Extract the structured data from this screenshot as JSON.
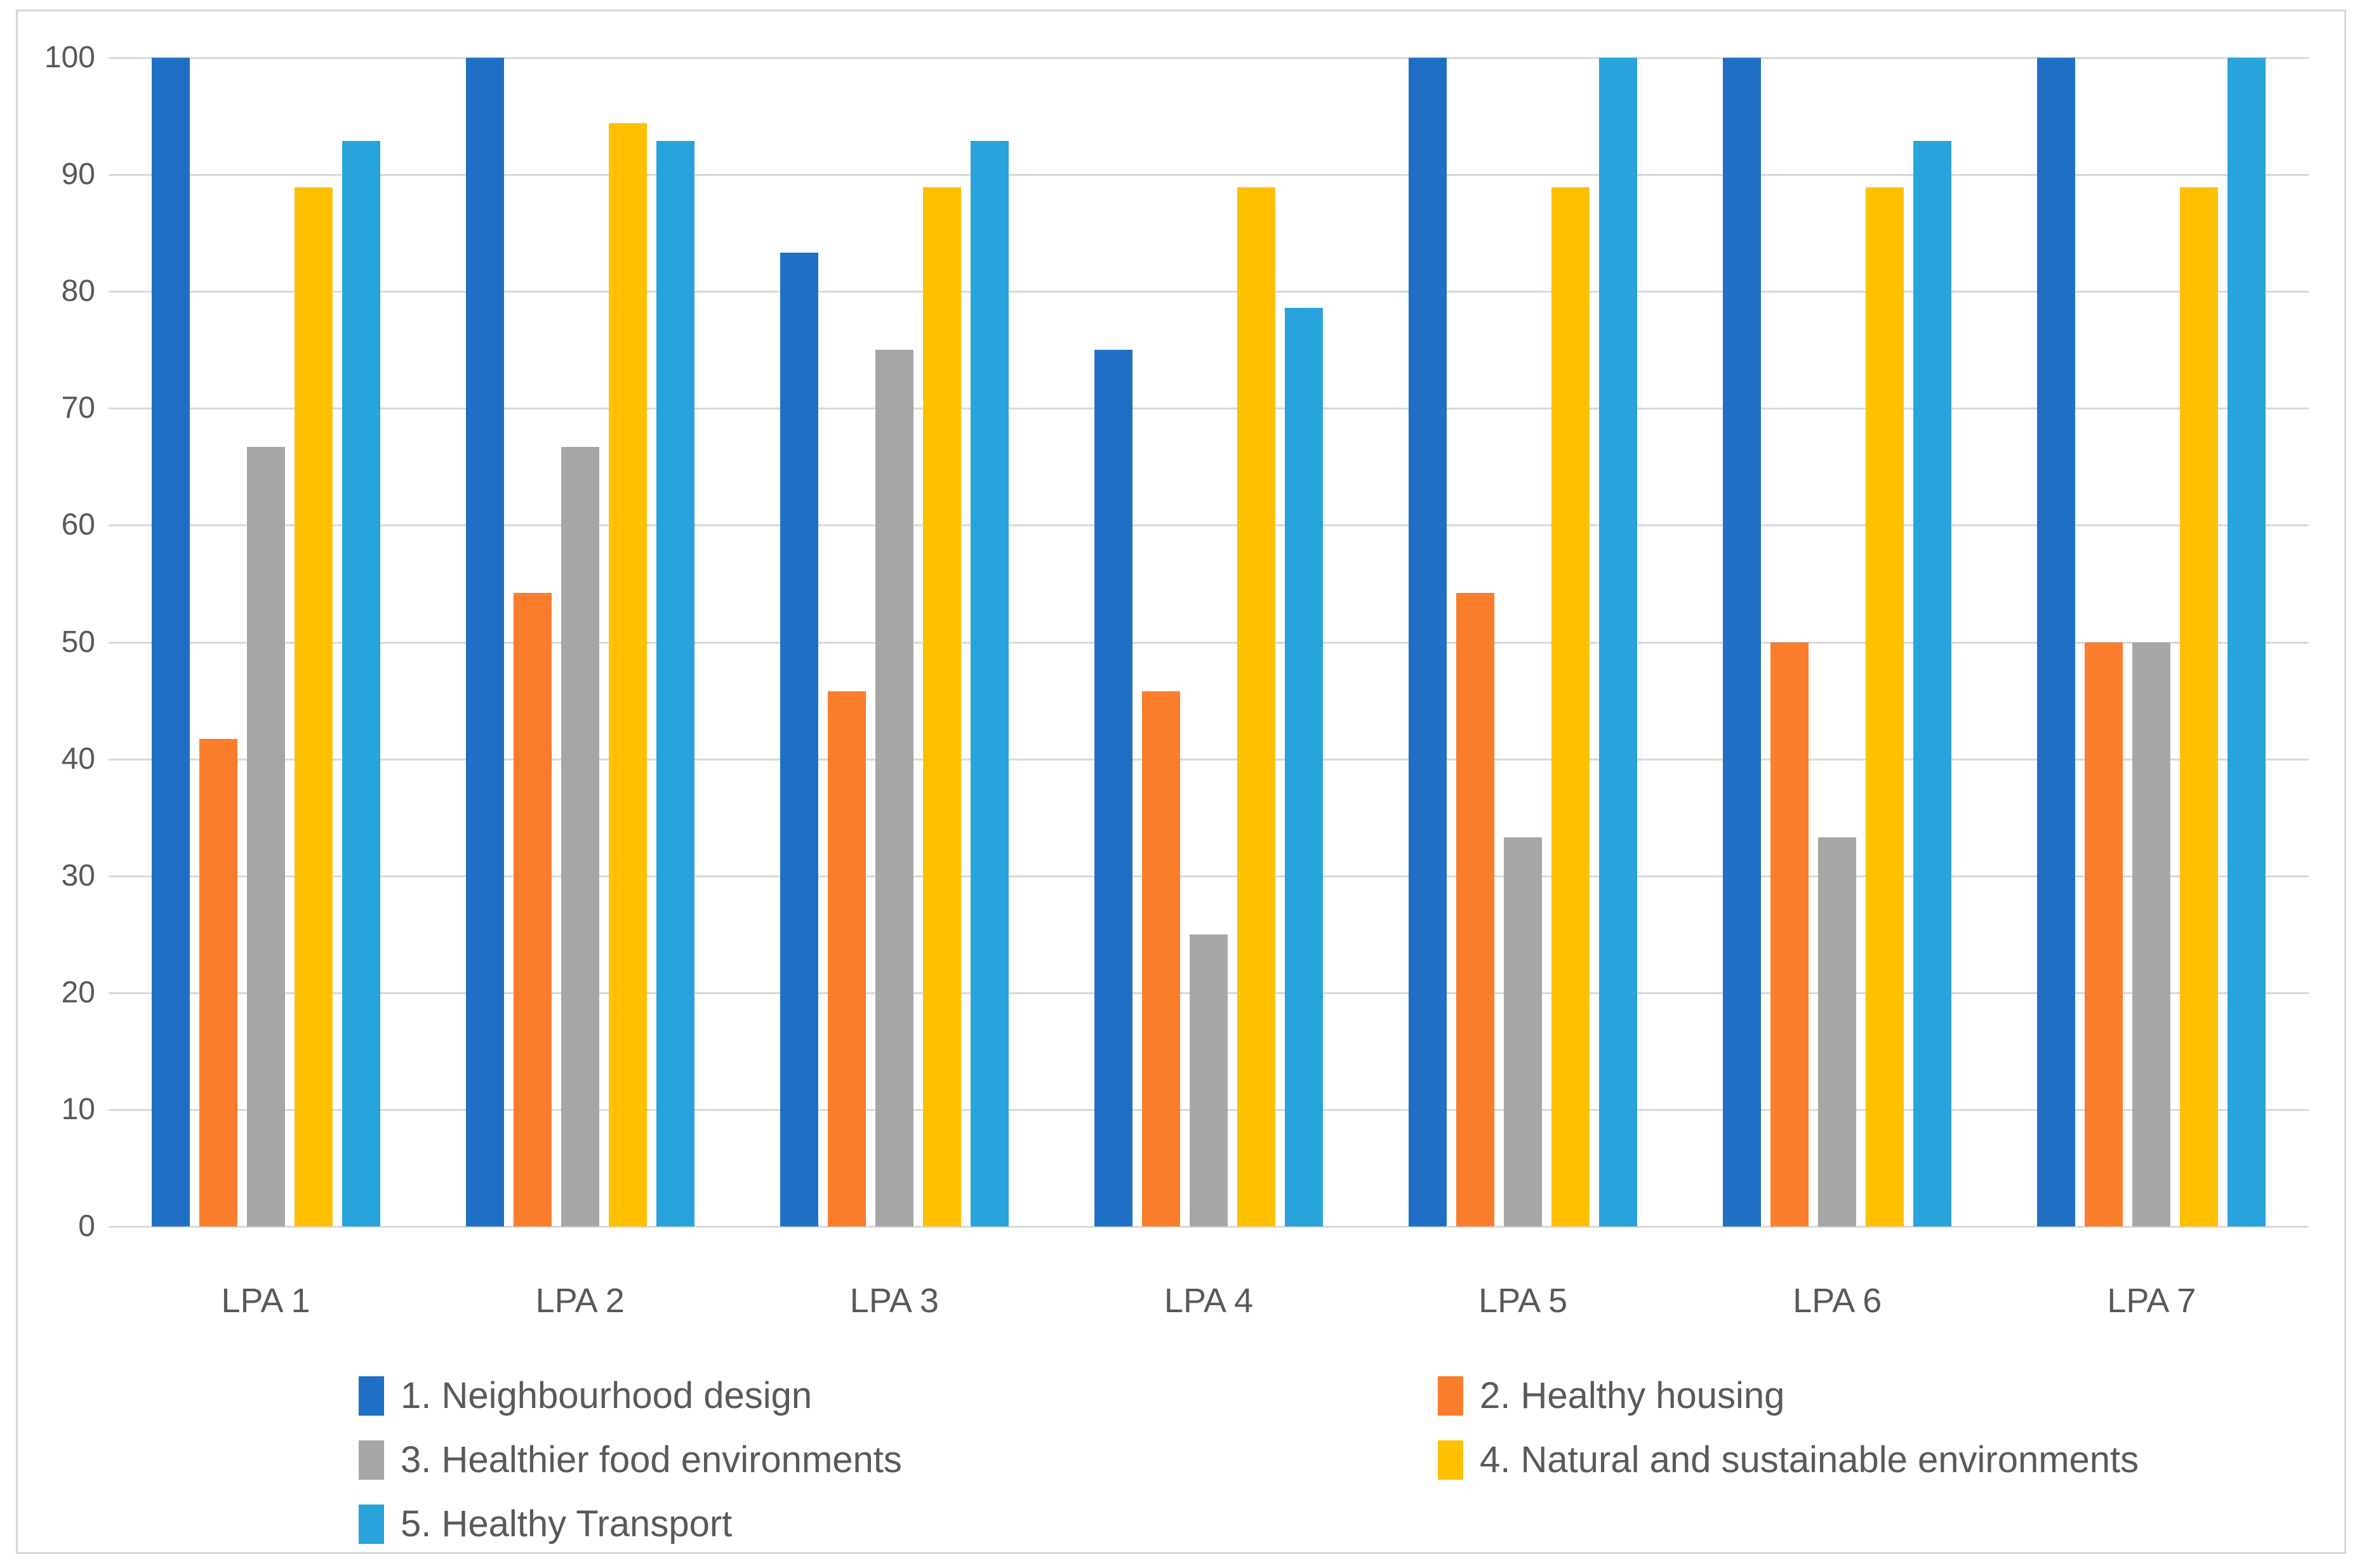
{
  "chart_data": {
    "type": "bar",
    "title": "",
    "categories": [
      "LPA 1",
      "LPA 2",
      "LPA 3",
      "LPA 4",
      "LPA 5",
      "LPA 6",
      "LPA 7"
    ],
    "series": [
      {
        "name": "1. Neighbourhood design",
        "color": "#1F70C4",
        "values": [
          100,
          100,
          83.3,
          75,
          100,
          100,
          100
        ]
      },
      {
        "name": "2. Healthy housing",
        "color": "#F97D2B",
        "values": [
          41.7,
          54.2,
          45.8,
          45.8,
          54.2,
          50,
          50
        ]
      },
      {
        "name": "3. Healthier food environments",
        "color": "#A6A6A6",
        "values": [
          66.7,
          66.7,
          75,
          25,
          33.3,
          33.3,
          50
        ]
      },
      {
        "name": "4. Natural and sustainable environments",
        "color": "#FFC002",
        "values": [
          88.9,
          94.4,
          88.9,
          88.9,
          88.9,
          88.9,
          88.9
        ]
      },
      {
        "name": "5. Healthy Transport",
        "color": "#28A3DC",
        "values": [
          92.9,
          92.9,
          92.9,
          78.6,
          100,
          92.9,
          100
        ]
      }
    ],
    "xlabel": "",
    "ylabel": "",
    "ylim": [
      0,
      100
    ],
    "y_ticks": [
      0,
      10,
      20,
      30,
      40,
      50,
      60,
      70,
      80,
      90,
      100
    ],
    "grid": true,
    "legend_position": "bottom",
    "legend_columns_order": [
      "left: items 1,3,5",
      "right: items 2,4"
    ]
  },
  "colors": {
    "gridline": "#D9D9D9",
    "axis_text": "#595959",
    "frame_border": "#D6D6D6",
    "background": "#FFFFFF"
  }
}
